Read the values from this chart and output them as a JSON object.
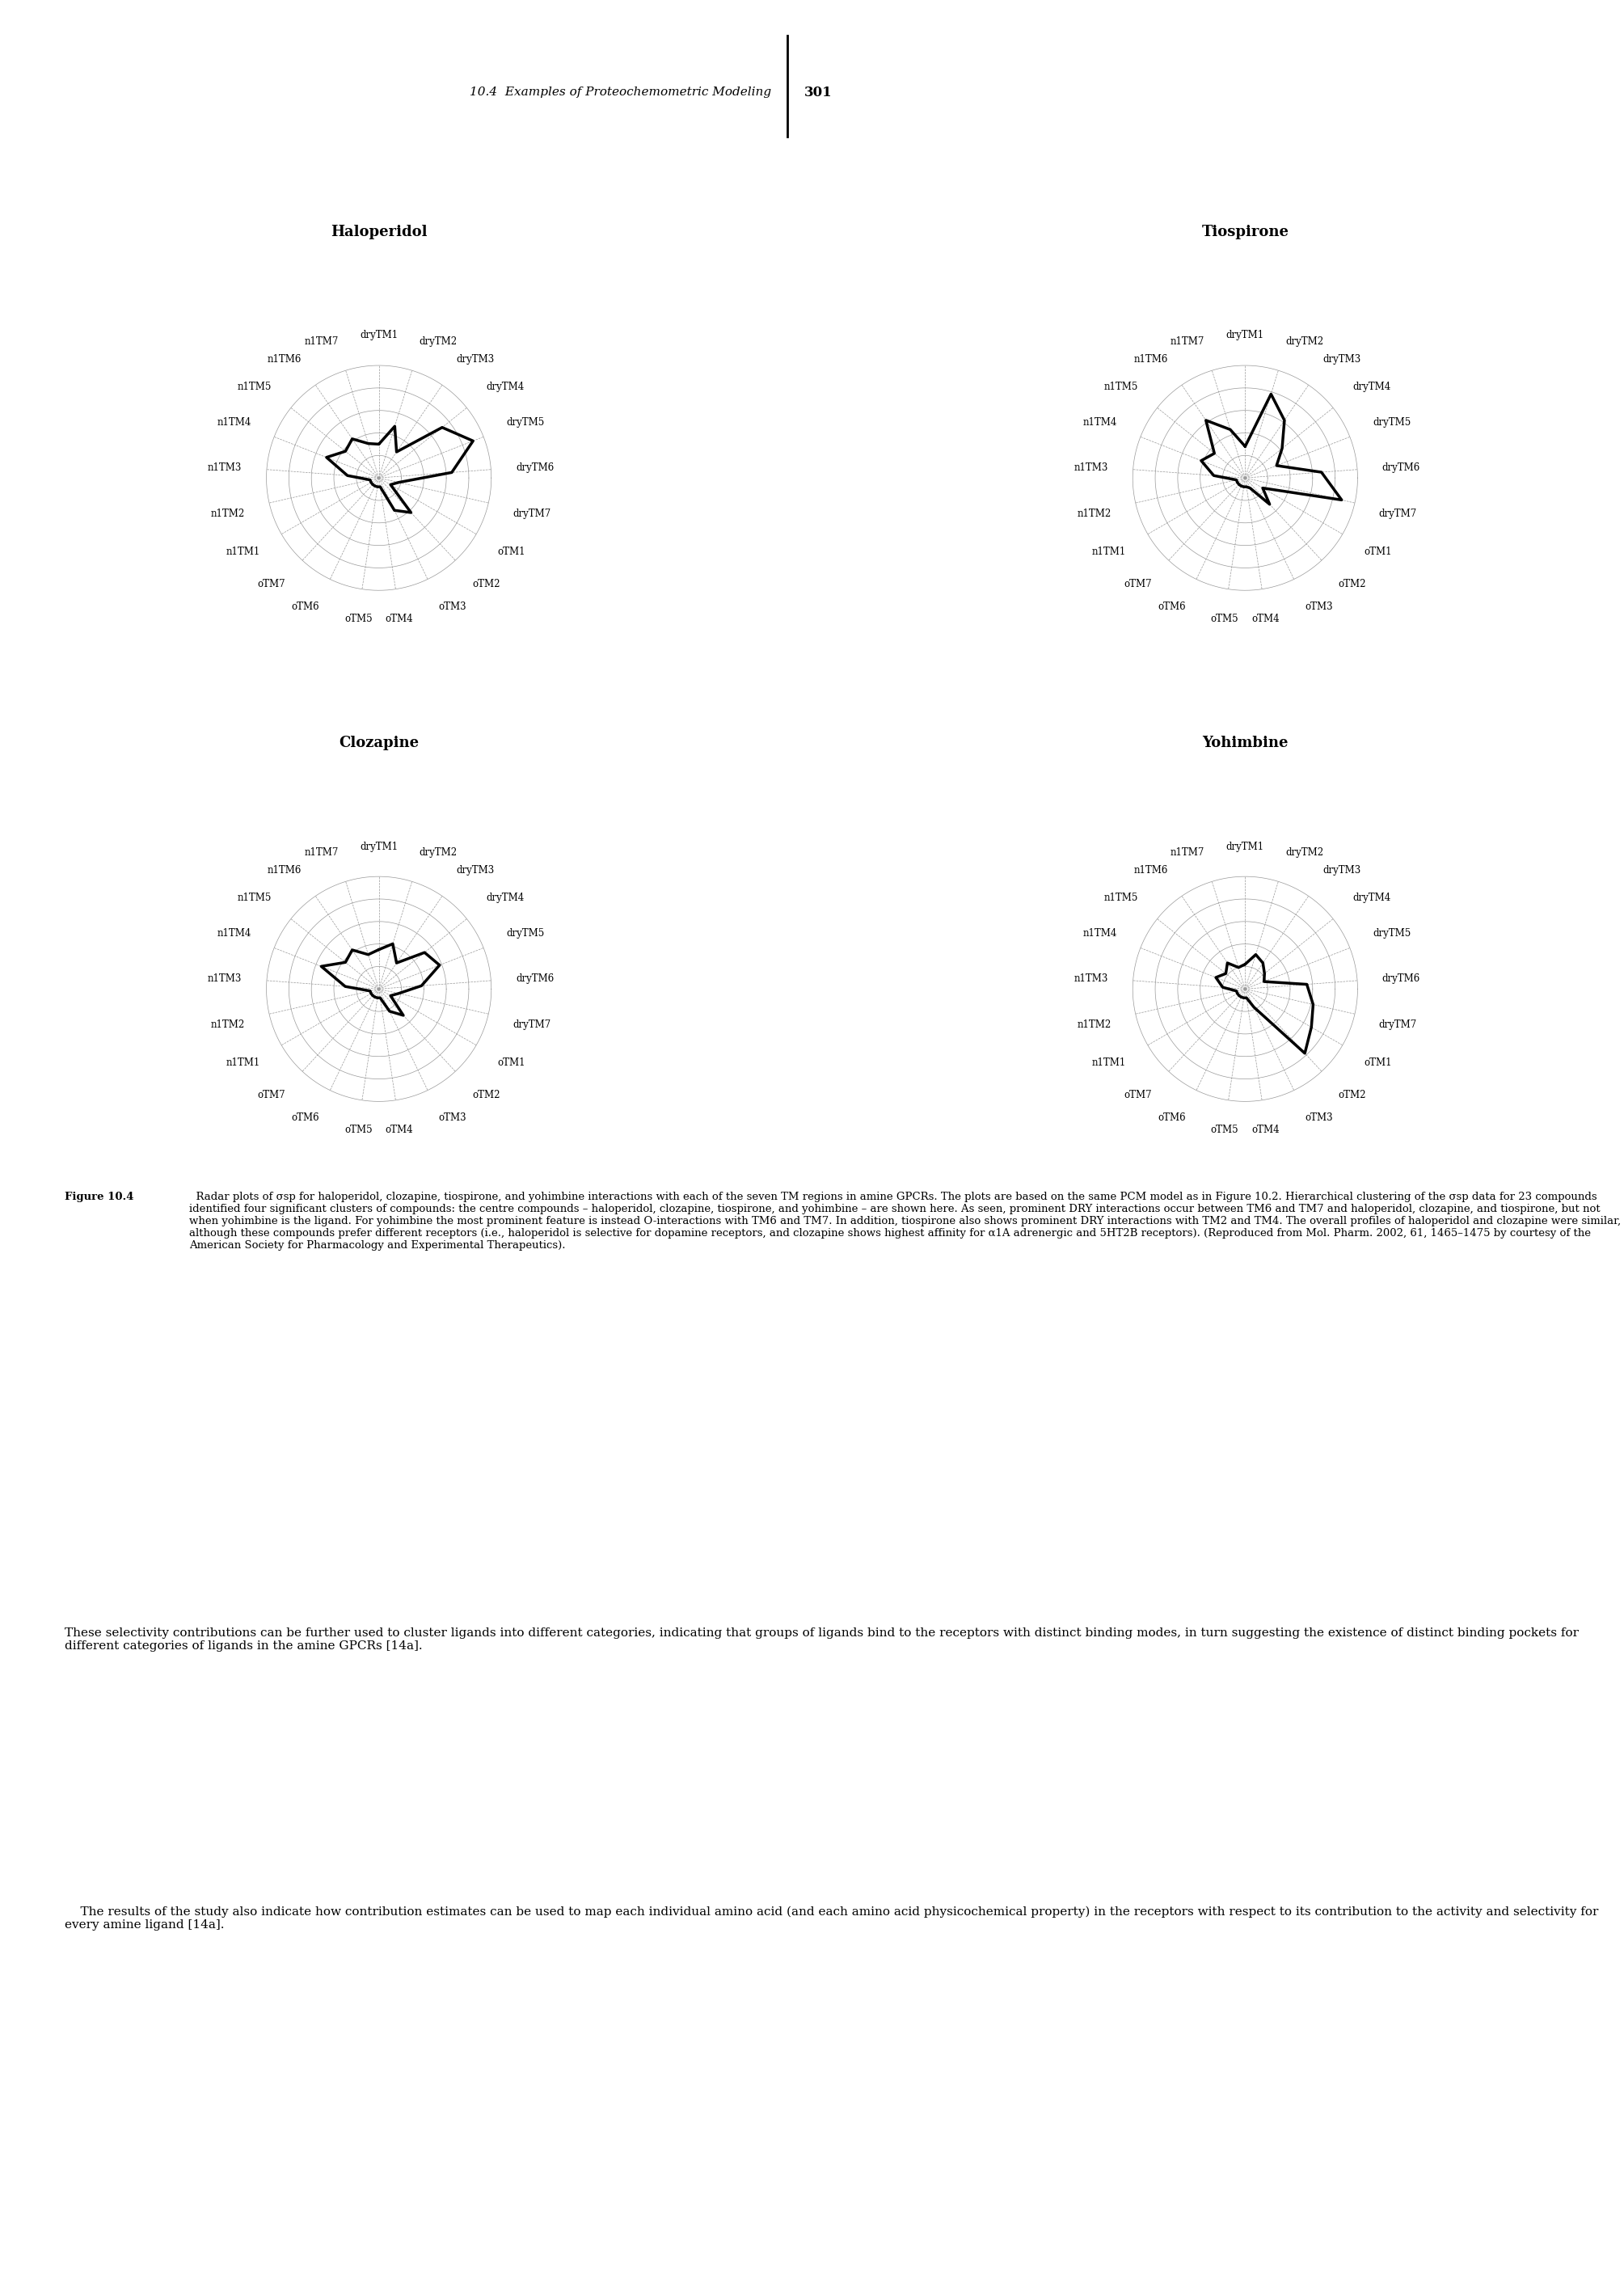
{
  "plots": [
    {
      "title": "Haloperidol",
      "values": [
        0.3,
        0.48,
        0.28,
        0.72,
        0.9,
        0.65,
        0.18,
        0.12,
        0.42,
        0.32,
        0.08,
        0.08,
        0.08,
        0.08,
        0.08,
        0.08,
        0.28,
        0.5,
        0.38,
        0.42,
        0.32
      ]
    },
    {
      "title": "Tiospirone",
      "values": [
        0.28,
        0.78,
        0.62,
        0.42,
        0.3,
        0.68,
        0.88,
        0.18,
        0.32,
        0.1,
        0.08,
        0.08,
        0.08,
        0.08,
        0.08,
        0.08,
        0.28,
        0.42,
        0.35,
        0.62,
        0.45
      ]
    },
    {
      "title": "Clozapine",
      "values": [
        0.35,
        0.42,
        0.28,
        0.52,
        0.58,
        0.38,
        0.18,
        0.12,
        0.32,
        0.22,
        0.08,
        0.08,
        0.08,
        0.08,
        0.08,
        0.08,
        0.3,
        0.55,
        0.38,
        0.42,
        0.32
      ]
    },
    {
      "title": "Yohimbine",
      "values": [
        0.22,
        0.32,
        0.28,
        0.22,
        0.18,
        0.55,
        0.62,
        0.68,
        0.78,
        0.18,
        0.08,
        0.08,
        0.08,
        0.08,
        0.08,
        0.08,
        0.2,
        0.28,
        0.22,
        0.28,
        0.2
      ]
    }
  ],
  "axes_labels": [
    "dryTM1",
    "dryTM2",
    "dryTM3",
    "dryTM4",
    "dryTM5",
    "dryTM6",
    "dryTM7",
    "oTM1",
    "oTM2",
    "oTM3",
    "oTM4",
    "oTM5",
    "oTM6",
    "oTM7",
    "n1TM1",
    "n1TM2",
    "n1TM3",
    "n1TM4",
    "n1TM5",
    "n1TM6",
    "n1TM7"
  ],
  "n_axes": 21,
  "line_color": "#000000",
  "line_width": 2.5,
  "grid_color": "#999999",
  "grid_linewidth": 0.5,
  "spoke_color": "#999999",
  "spoke_linewidth": 0.5,
  "background_color": "#ffffff",
  "title_fontsize": 13,
  "label_fontsize": 8.5,
  "n_grid_levels": 5,
  "page_header_italic": "10.4  Examples of Proteochemometric Modeling",
  "page_number": "301",
  "caption_title": "Figure 10.4",
  "caption_body": "  Radar plots of σsp for haloperidol, clozapine, tiospirone, and yohimbine interactions with each of the seven TM regions in amine GPCRs. The plots are based on the same PCM model as in Figure 10.2. Hierarchical clustering of the σsp data for 23 compounds identified four significant clusters of compounds: the centre compounds – haloperidol, clozapine, tiospirone, and yohimbine – are shown here. As seen, prominent DRY interactions occur between TM6 and TM7 and haloperidol, clozapine, and tiospirone, but not when yohimbine is the ligand. For yohimbine the most prominent feature is instead O-interactions with TM6 and TM7. In addition, tiospirone also shows prominent DRY interactions with TM2 and TM4. The overall profiles of haloperidol and clozapine were similar, although these compounds prefer different receptors (i.e., haloperidol is selective for dopamine receptors, and clozapine shows highest affinity for α1A adrenergic and 5HT2B receptors). (Reproduced from Mol. Pharm. 2002, 61, 1465–1475 by courtesy of the American Society for Pharmacology and Experimental Therapeutics).",
  "body_para1": "These selectivity contributions can be further used to cluster ligands into different categories, indicating that groups of ligands bind to the receptors with distinct binding modes, in turn suggesting the existence of distinct binding pockets for different categories of ligands in the amine GPCRs [14a].",
  "body_para2": "    The results of the study also indicate how contribution estimates can be used to map each individual amino acid (and each amino acid physicochemical property) in the receptors with respect to its contribution to the activity and selectivity for every amine ligand [14a]."
}
